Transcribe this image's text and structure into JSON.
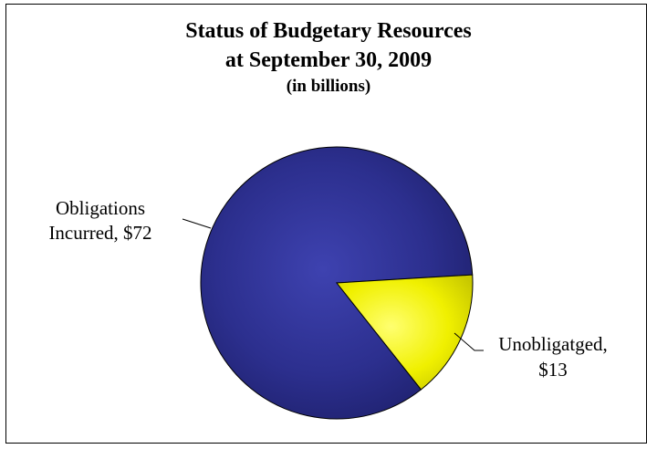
{
  "chart_data": {
    "type": "pie",
    "title": [
      "Status of Budgetary Resources",
      "at September 30, 2009"
    ],
    "subtitle": "(in billions)",
    "slices": [
      {
        "label_lines": [
          "Obligations",
          "Incurred, $72"
        ],
        "value": 72,
        "color": "#2e3192"
      },
      {
        "label_lines": [
          "Unobligatged,",
          "$13"
        ],
        "value": 13,
        "color": "#f2f200"
      }
    ],
    "legend": "none"
  }
}
